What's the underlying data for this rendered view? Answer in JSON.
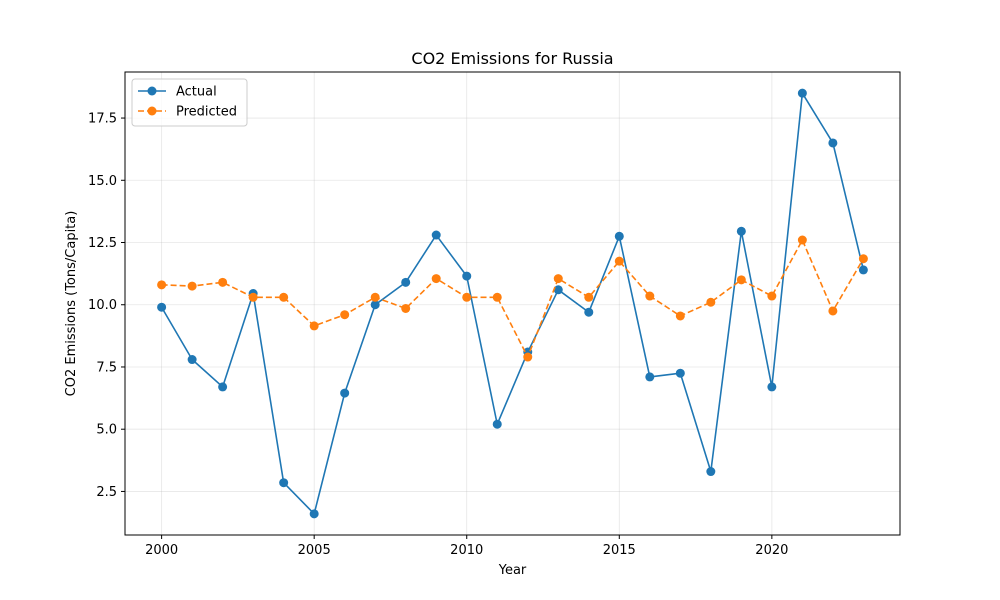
{
  "chart_data": {
    "type": "line",
    "title": "CO2 Emissions for Russia",
    "xlabel": "Year",
    "ylabel": "CO2 Emissions (Tons/Capita)",
    "x": [
      2000,
      2001,
      2002,
      2003,
      2004,
      2005,
      2006,
      2007,
      2008,
      2009,
      2010,
      2011,
      2012,
      2013,
      2014,
      2015,
      2016,
      2017,
      2018,
      2019,
      2020,
      2021,
      2022,
      2023
    ],
    "xlim": [
      1998.8,
      2024.2
    ],
    "ylim": [
      0.75,
      19.35
    ],
    "xticks": [
      "2000",
      "2005",
      "2010",
      "2015",
      "2020"
    ],
    "yticks": [
      "2.5",
      "5.0",
      "7.5",
      "10.0",
      "12.5",
      "15.0",
      "17.5"
    ],
    "grid": true,
    "legend_position": "upper-left",
    "series": [
      {
        "name": "Actual",
        "color": "#1f77b4",
        "line_style": "solid",
        "marker": "circle",
        "values": [
          9.9,
          7.8,
          6.7,
          10.45,
          2.85,
          1.6,
          6.45,
          10.0,
          10.9,
          12.8,
          11.15,
          5.2,
          8.1,
          10.6,
          9.7,
          12.75,
          7.1,
          7.25,
          3.3,
          12.95,
          6.7,
          18.5,
          16.5,
          11.4
        ]
      },
      {
        "name": "Predicted",
        "color": "#ff7f0e",
        "line_style": "dashed",
        "marker": "circle",
        "values": [
          10.8,
          10.75,
          10.9,
          10.3,
          10.3,
          9.15,
          9.6,
          10.3,
          9.85,
          11.05,
          10.3,
          10.3,
          7.9,
          11.05,
          10.3,
          11.75,
          10.35,
          9.55,
          10.1,
          11.0,
          10.35,
          12.6,
          9.75,
          11.85
        ]
      }
    ]
  }
}
